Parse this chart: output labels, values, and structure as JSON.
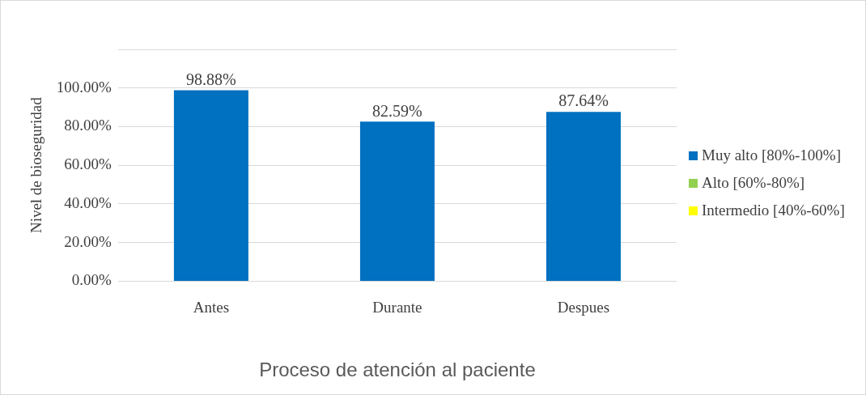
{
  "chart_data": {
    "type": "bar",
    "xlabel": "Proceso de atención al paciente",
    "ylabel": "Nivel de bioseguridad",
    "categories": [
      "Antes",
      "Durante",
      "Despues"
    ],
    "series": [
      {
        "name": "Muy alto [80%-100%]",
        "color": "#0070c0",
        "values": [
          98.88,
          82.59,
          87.64
        ],
        "value_labels": [
          "98.88%",
          "82.59%",
          "87.64%"
        ]
      },
      {
        "name": "Alto [60%-80%]",
        "color": "#92d050",
        "values": [
          null,
          null,
          null
        ]
      },
      {
        "name": "Intermedio [40%-60%]",
        "color": "#ffff00",
        "values": [
          null,
          null,
          null
        ]
      }
    ],
    "ylim": [
      0,
      120
    ],
    "yticks": [
      {
        "value": 0,
        "label": "0.00%"
      },
      {
        "value": 20,
        "label": "20.00%"
      },
      {
        "value": 40,
        "label": "40.00%"
      },
      {
        "value": 60,
        "label": "60.00%"
      },
      {
        "value": 80,
        "label": "80.00%"
      },
      {
        "value": 100,
        "label": "100.00%"
      },
      {
        "value": 120,
        "label": null
      }
    ],
    "grid": "y",
    "legend": "right"
  }
}
